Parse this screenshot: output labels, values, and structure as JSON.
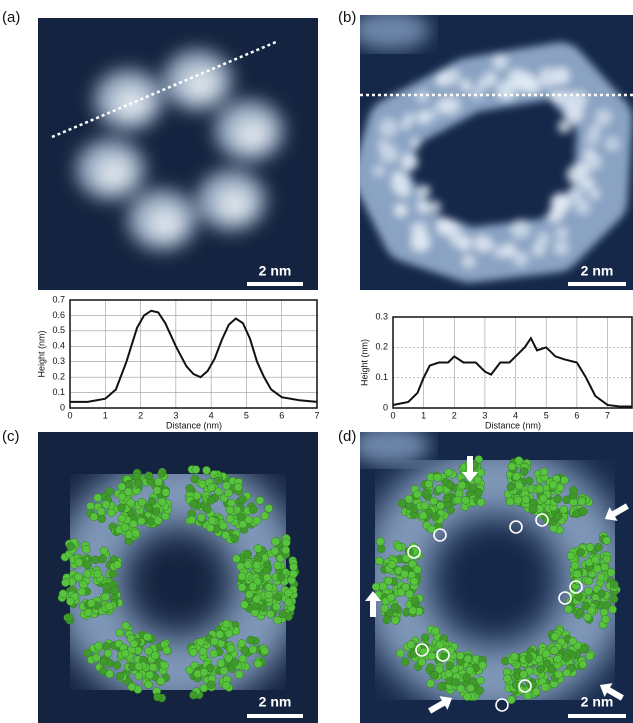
{
  "figure": {
    "panels": [
      {
        "label": "(a)",
        "scale_bar": "2 nm"
      },
      {
        "label": "(b)",
        "scale_bar": "2 nm"
      },
      {
        "label": "(c)",
        "scale_bar": "2 nm"
      },
      {
        "label": "(d)",
        "scale_bar": "2 nm"
      }
    ]
  },
  "chart_data": [
    {
      "type": "line",
      "x_label": "Distance (nm)",
      "y_label": "Height (nm)",
      "color": "#111111",
      "grid": true,
      "xlim": [
        0,
        7
      ],
      "ylim": [
        0,
        0.7
      ],
      "xticks": [
        0,
        1,
        2,
        3,
        4,
        5,
        6,
        7
      ],
      "yticks": [
        0,
        0.1,
        0.2,
        0.3,
        0.4,
        0.5,
        0.6,
        0.7
      ],
      "x": [
        0,
        0.5,
        1,
        1.3,
        1.6,
        1.9,
        2.1,
        2.3,
        2.5,
        2.7,
        3,
        3.3,
        3.5,
        3.7,
        3.9,
        4.1,
        4.3,
        4.5,
        4.7,
        4.9,
        5.1,
        5.3,
        5.5,
        5.7,
        6,
        6.5,
        7
      ],
      "values": [
        0.04,
        0.04,
        0.06,
        0.12,
        0.3,
        0.52,
        0.6,
        0.63,
        0.62,
        0.55,
        0.4,
        0.27,
        0.22,
        0.2,
        0.24,
        0.32,
        0.44,
        0.54,
        0.58,
        0.55,
        0.45,
        0.3,
        0.2,
        0.12,
        0.07,
        0.05,
        0.04
      ]
    },
    {
      "type": "line",
      "x_label": "Distance (nm)",
      "y_label": "Height (nm)",
      "color": "#111111",
      "grid": true,
      "xlim": [
        0,
        7.8
      ],
      "ylim": [
        0,
        0.3
      ],
      "xticks": [
        0,
        1,
        2,
        3,
        4,
        5,
        6,
        7
      ],
      "yticks": [
        0,
        0.1,
        0.2,
        0.3
      ],
      "x": [
        0,
        0.5,
        0.8,
        1,
        1.2,
        1.5,
        1.8,
        2,
        2.3,
        2.7,
        3,
        3.2,
        3.5,
        3.8,
        4,
        4.3,
        4.5,
        4.7,
        5,
        5.3,
        5.6,
        6,
        6.3,
        6.6,
        7,
        7.4,
        7.8
      ],
      "values": [
        0.01,
        0.02,
        0.05,
        0.1,
        0.14,
        0.15,
        0.15,
        0.17,
        0.15,
        0.15,
        0.12,
        0.11,
        0.15,
        0.15,
        0.17,
        0.2,
        0.23,
        0.19,
        0.2,
        0.17,
        0.16,
        0.15,
        0.1,
        0.04,
        0.01,
        0.005,
        0.005
      ]
    }
  ]
}
